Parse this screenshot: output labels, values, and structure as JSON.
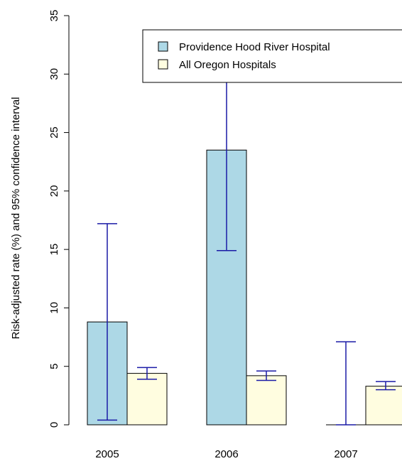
{
  "chart_data": {
    "type": "bar",
    "title": "",
    "xlabel": "",
    "ylabel": "Risk-adjusted rate (%) and 95% confidence interval",
    "categories": [
      "2005",
      "2006",
      "2007"
    ],
    "ylim": [
      0,
      35
    ],
    "yticks": [
      0,
      5,
      10,
      15,
      20,
      25,
      30,
      35
    ],
    "grid": false,
    "legend_position": "top-right",
    "series": [
      {
        "name": "Providence Hood River Hospital",
        "color": "#add8e6",
        "values": [
          8.8,
          23.5,
          0
        ],
        "ci_low": [
          0.4,
          14.9,
          0
        ],
        "ci_high": [
          17.2,
          32.1,
          7.1
        ]
      },
      {
        "name": "All Oregon Hospitals",
        "color": "#fffde0",
        "values": [
          4.4,
          4.2,
          3.3
        ],
        "ci_low": [
          3.9,
          3.8,
          3.0
        ],
        "ci_high": [
          4.9,
          4.6,
          3.7
        ]
      }
    ],
    "errorbar_color": "#1a1aa6"
  }
}
